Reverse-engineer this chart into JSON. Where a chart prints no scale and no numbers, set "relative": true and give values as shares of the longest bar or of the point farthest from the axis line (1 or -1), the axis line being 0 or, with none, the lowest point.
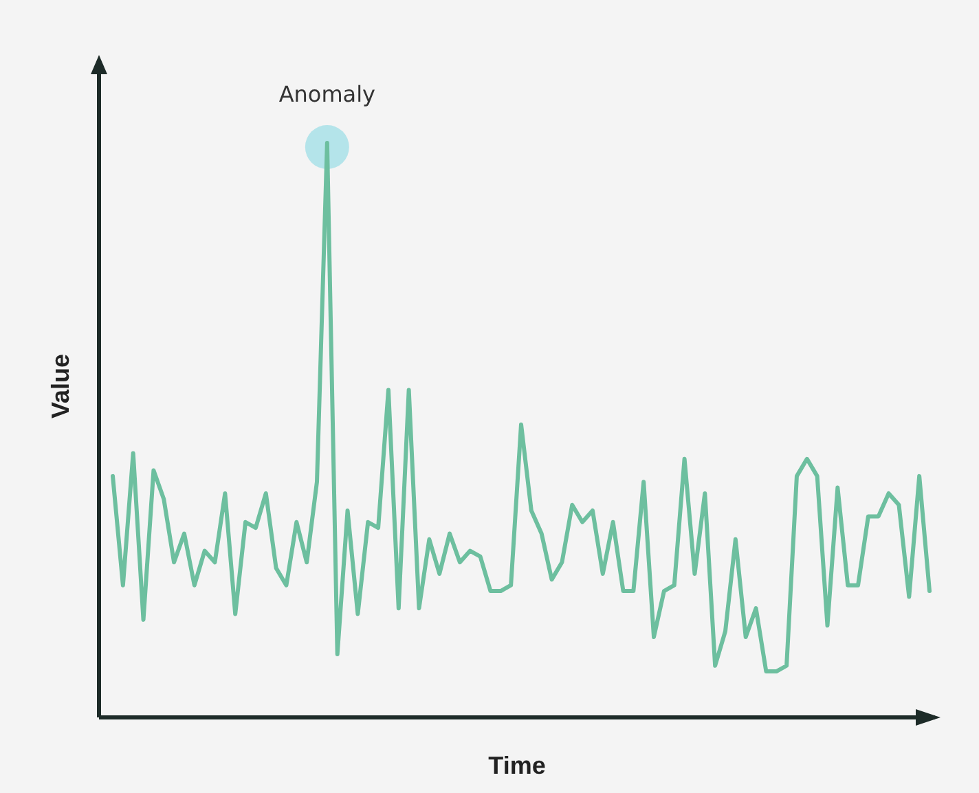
{
  "chart_data": {
    "type": "line",
    "xlabel": "Time",
    "ylabel": "Value",
    "relative": true,
    "categories": [
      null,
      null,
      null,
      null,
      null,
      null,
      null,
      null,
      null,
      null,
      null,
      null,
      null,
      null,
      null,
      null,
      null,
      null,
      null,
      null,
      null,
      null,
      null,
      null,
      null,
      null,
      null,
      null,
      null,
      null,
      null,
      null,
      null,
      null,
      null,
      null,
      null,
      null,
      null,
      null,
      null,
      null,
      null,
      null,
      null,
      null,
      null,
      null,
      null,
      null,
      null,
      null,
      null,
      null,
      null,
      null,
      null,
      null,
      null,
      null,
      null,
      null,
      null,
      null,
      null,
      null,
      null,
      null,
      null,
      null,
      null,
      null,
      null,
      null,
      null,
      null,
      null,
      null,
      null,
      null,
      null
    ],
    "series": [
      {
        "color": "#6dbf9f",
        "values": [
          0.42,
          0.23,
          0.46,
          0.17,
          0.43,
          0.38,
          0.27,
          0.32,
          0.23,
          0.29,
          0.27,
          0.39,
          0.18,
          0.34,
          0.33,
          0.39,
          0.26,
          0.23,
          0.34,
          0.27,
          0.41,
          1,
          0.11,
          0.36,
          0.18,
          0.34,
          0.33,
          0.57,
          0.19,
          0.57,
          0.19,
          0.31,
          0.25,
          0.32,
          0.27,
          0.29,
          0.28,
          0.22,
          0.22,
          0.23,
          0.51,
          0.36,
          0.32,
          0.24,
          0.27,
          0.37,
          0.34,
          0.36,
          0.25,
          0.34,
          0.22,
          0.22,
          0.41,
          0.14,
          0.22,
          0.23,
          0.45,
          0.25,
          0.39,
          0.09,
          0.15,
          0.31,
          0.14,
          0.19,
          0.08,
          0.08,
          0.09,
          0.42,
          0.45,
          0.42,
          0.16,
          0.4,
          0.23,
          0.23,
          0.35,
          0.35,
          0.39,
          0.37,
          0.21,
          0.42,
          0.22
        ]
      }
    ],
    "annotations": [
      {
        "text": "Anomaly",
        "y": 1
      }
    ]
  }
}
